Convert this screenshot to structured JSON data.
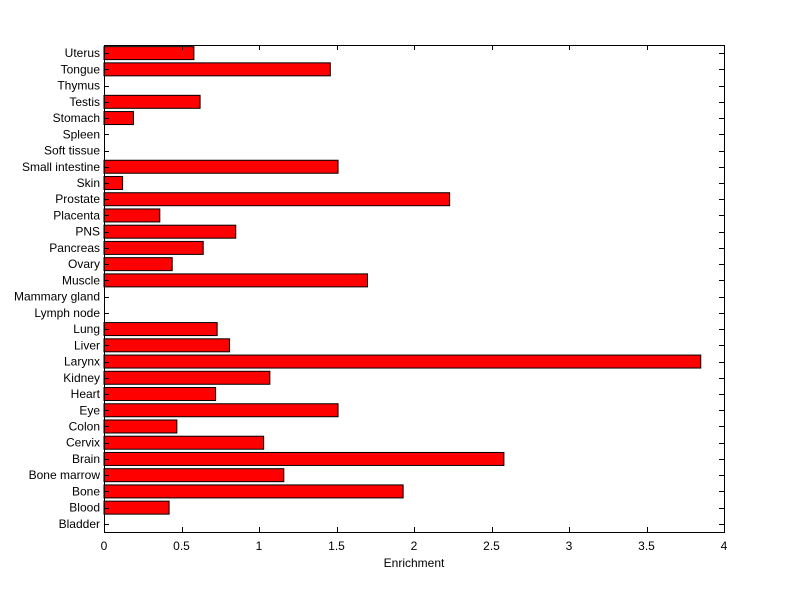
{
  "chart_data": {
    "type": "bar",
    "orientation": "horizontal",
    "categories": [
      "Bladder",
      "Blood",
      "Bone",
      "Bone marrow",
      "Brain",
      "Cervix",
      "Colon",
      "Eye",
      "Heart",
      "Kidney",
      "Larynx",
      "Liver",
      "Lung",
      "Lymph node",
      "Mammary gland",
      "Muscle",
      "Ovary",
      "Pancreas",
      "PNS",
      "Placenta",
      "Prostate",
      "Skin",
      "Small intestine",
      "Soft tissue",
      "Spleen",
      "Stomach",
      "Testis",
      "Thymus",
      "Tongue",
      "Uterus"
    ],
    "values": [
      0,
      0.42,
      1.93,
      1.16,
      2.58,
      1.03,
      0.47,
      1.51,
      0.72,
      1.07,
      3.85,
      0.81,
      0.73,
      0,
      0,
      1.7,
      0.44,
      0.64,
      0.85,
      0.36,
      2.23,
      0.12,
      1.51,
      0,
      0,
      0.19,
      0.62,
      0,
      1.46,
      0.58
    ],
    "xlabel": "Enrichment",
    "ylabel": "",
    "title": "",
    "xlim": [
      0,
      4
    ],
    "xticks": [
      "0",
      "0.5",
      "1",
      "1.5",
      "2",
      "2.5",
      "3",
      "3.5",
      "4"
    ],
    "bar_color": "#ff0000",
    "grid": false
  }
}
